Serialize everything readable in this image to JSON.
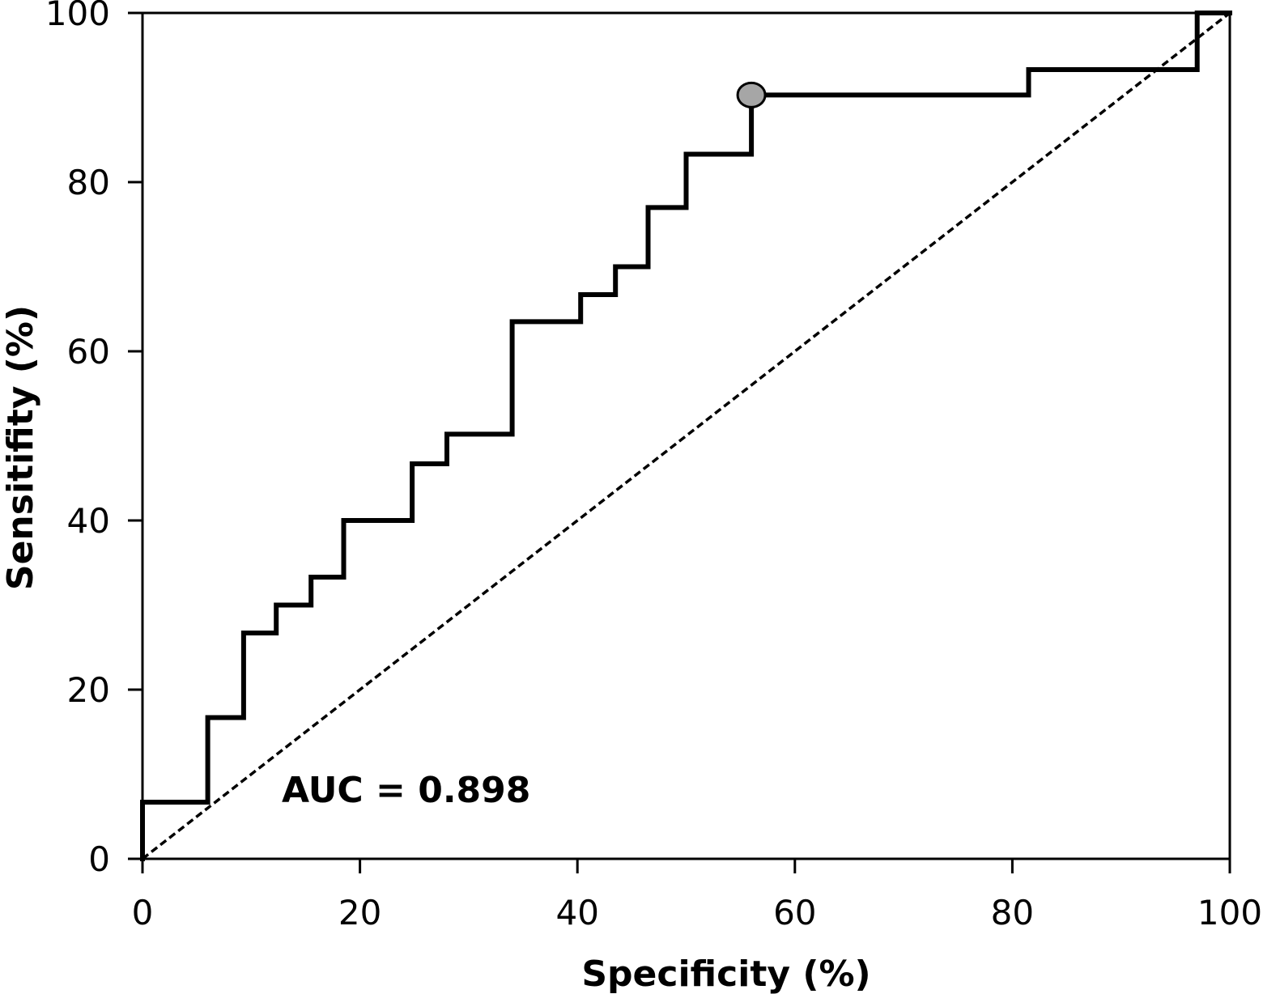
{
  "chart_data": {
    "type": "line",
    "xlabel": "Specificity (%)",
    "ylabel": "Sensitifity (%)",
    "xlim": [
      0,
      100
    ],
    "ylim": [
      0,
      100
    ],
    "xticks": [
      "0",
      "20",
      "40",
      "60",
      "80",
      "100"
    ],
    "yticks": [
      "0",
      "20",
      "40",
      "60",
      "80",
      "100"
    ],
    "annotation": "AUC = 0.898",
    "grid": false,
    "series": [
      {
        "style": "solid-step",
        "color": "#000000",
        "x": [
          0,
          0,
          6,
          6,
          9.3,
          9.3,
          12.3,
          12.3,
          15.5,
          15.5,
          18.5,
          18.5,
          24.8,
          24.8,
          28,
          28,
          34,
          34,
          40.3,
          40.3,
          43.5,
          43.5,
          46.5,
          46.5,
          50,
          50,
          56,
          56,
          81.5,
          81.5,
          97,
          97,
          100
        ],
        "y": [
          0,
          6.7,
          6.7,
          16.7,
          16.7,
          26.7,
          26.7,
          30,
          30,
          33.3,
          33.3,
          40,
          40,
          46.7,
          46.7,
          50.2,
          50.2,
          63.5,
          63.5,
          66.7,
          66.7,
          70,
          70,
          77,
          77,
          83.3,
          83.3,
          90.3,
          90.3,
          93.3,
          93.3,
          100,
          100
        ]
      },
      {
        "style": "dashed-reference",
        "color": "#000000",
        "x": [
          0,
          100
        ],
        "y": [
          0,
          100
        ]
      }
    ],
    "highlight_point": {
      "x": 56,
      "y": 90.3,
      "color": "#a6a6a6"
    }
  }
}
